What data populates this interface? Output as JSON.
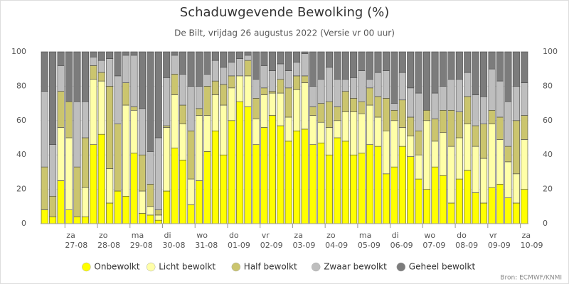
{
  "chart_data": {
    "type": "bar",
    "stacked": true,
    "title": "Schaduwgevende Bewolking (%)",
    "subtitle": "De Bilt, vrijdag 26 augustus 2022 (Versie vr 00 uur)",
    "credit": "Bron: ECMWF/KNMI",
    "categories": [
      null,
      null,
      null,
      [
        "za",
        "27-08"
      ],
      null,
      null,
      null,
      [
        "zo",
        "28-08"
      ],
      null,
      null,
      null,
      [
        "ma",
        "29-08"
      ],
      null,
      null,
      null,
      [
        "di",
        "30-08"
      ],
      null,
      null,
      null,
      [
        "wo",
        "31-08"
      ],
      null,
      null,
      null,
      [
        "do",
        "01-09"
      ],
      null,
      null,
      null,
      [
        "vr",
        "02-09"
      ],
      null,
      null,
      null,
      [
        "za",
        "03-09"
      ],
      null,
      null,
      null,
      [
        "zo",
        "04-09"
      ],
      null,
      null,
      null,
      [
        "ma",
        "05-09"
      ],
      null,
      null,
      null,
      [
        "di",
        "06-09"
      ],
      null,
      null,
      null,
      [
        "wo",
        "07-09"
      ],
      null,
      null,
      null,
      [
        "do",
        "08-09"
      ],
      null,
      null,
      null,
      [
        "vr",
        "09-09"
      ],
      null,
      null,
      null,
      [
        "za",
        "10-09"
      ]
    ],
    "series": [
      {
        "name": "Onbewolkt",
        "color": "#ffff00",
        "values": [
          8,
          4,
          25,
          8,
          4,
          4,
          46,
          52,
          12,
          19,
          16,
          41,
          6,
          5,
          2,
          19,
          44,
          37,
          11,
          25,
          42,
          54,
          40,
          60,
          71,
          68,
          46,
          56,
          63,
          57,
          48,
          54,
          55,
          46,
          47,
          40,
          50,
          48,
          40,
          41,
          46,
          45,
          29,
          33,
          45,
          39,
          26,
          20,
          33,
          28,
          12,
          26,
          31,
          18,
          12,
          21,
          23,
          15,
          12,
          20
        ]
      },
      {
        "name": "Licht bewolkt",
        "color": "#ffffa8",
        "values": [
          0,
          0,
          31,
          42,
          0,
          17,
          38,
          31,
          20,
          0,
          53,
          25,
          13,
          5,
          3,
          37,
          31,
          21,
          15,
          38,
          21,
          21,
          29,
          19,
          15,
          18,
          15,
          19,
          13,
          19,
          14,
          24,
          27,
          17,
          12,
          16,
          10,
          17,
          25,
          23,
          23,
          17,
          25,
          27,
          11,
          12,
          14,
          40,
          15,
          25,
          33,
          24,
          27,
          27,
          26,
          37,
          26,
          21,
          17,
          29
        ]
      },
      {
        "name": "Half bewolkt",
        "color": "#cbc56e",
        "values": [
          25,
          12,
          21,
          21,
          29,
          29,
          8,
          5,
          48,
          39,
          13,
          2,
          21,
          13,
          3,
          1,
          12,
          11,
          28,
          4,
          17,
          8,
          12,
          7,
          0,
          9,
          12,
          4,
          1,
          8,
          17,
          8,
          4,
          5,
          11,
          15,
          8,
          12,
          8,
          7,
          10,
          12,
          19,
          6,
          16,
          11,
          14,
          6,
          13,
          13,
          21,
          15,
          16,
          12,
          20,
          8,
          13,
          9,
          31,
          14
        ]
      },
      {
        "name": "Zwaar bewolkt",
        "color": "#bebebe",
        "values": [
          44,
          30,
          15,
          0,
          38,
          21,
          5,
          7,
          16,
          28,
          16,
          30,
          27,
          19,
          42,
          28,
          11,
          18,
          26,
          13,
          7,
          12,
          10,
          8,
          10,
          3,
          11,
          13,
          12,
          9,
          10,
          8,
          13,
          12,
          14,
          20,
          16,
          7,
          12,
          18,
          5,
          14,
          16,
          4,
          16,
          17,
          22,
          0,
          15,
          14,
          18,
          19,
          14,
          18,
          16,
          24,
          21,
          26,
          20,
          19
        ]
      },
      {
        "name": "Geheel bewolkt",
        "color": "#7c7c7c",
        "values": [
          23,
          54,
          8,
          29,
          29,
          29,
          3,
          5,
          4,
          14,
          2,
          2,
          33,
          58,
          50,
          15,
          2,
          13,
          20,
          20,
          13,
          5,
          9,
          6,
          4,
          2,
          16,
          8,
          11,
          7,
          11,
          6,
          1,
          20,
          16,
          9,
          16,
          16,
          15,
          11,
          16,
          12,
          11,
          30,
          12,
          21,
          24,
          34,
          24,
          20,
          16,
          16,
          12,
          25,
          26,
          10,
          17,
          29,
          20,
          18
        ]
      }
    ],
    "ylim": [
      0,
      100
    ],
    "yticks": [
      0,
      20,
      40,
      60,
      80,
      100
    ],
    "y2lim": [
      0,
      100
    ],
    "y2ticks": [
      0,
      20,
      40,
      60,
      80,
      100
    ],
    "grid": true,
    "legend": "bottom"
  }
}
